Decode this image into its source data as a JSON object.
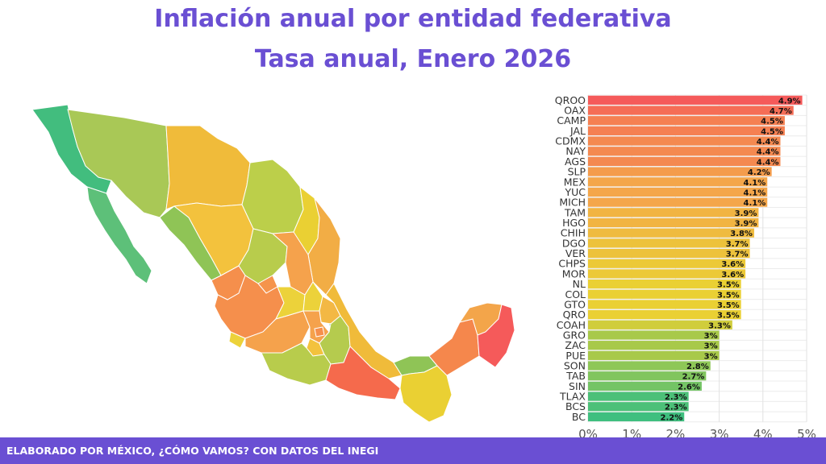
{
  "title": "Inflación anual por entidad federativa",
  "subtitle": "Tasa anual, Enero 2026",
  "footer": "ELABORADO POR MÉXICO, ¿CÓMO VAMOS? CON DATOS DEL INEGI",
  "colors": {
    "title": "#6a4fd3",
    "footer_bg": "#6a4fd3",
    "scale_low": "#3fbf7f",
    "scale_mid_low": "#a8c94a",
    "scale_mid": "#ead033",
    "scale_mid_high": "#f4a64a",
    "scale_high": "#f55a5a"
  },
  "map": {
    "type": "choropleth",
    "region": "Mexico states",
    "color_scale": "green-to-red"
  },
  "chart_data": {
    "type": "bar",
    "orientation": "horizontal",
    "categories": [
      "QROO",
      "OAX",
      "CAMP",
      "JAL",
      "CDMX",
      "NAY",
      "AGS",
      "SLP",
      "MEX",
      "YUC",
      "MICH",
      "TAM",
      "HGO",
      "CHIH",
      "DGO",
      "VER",
      "CHPS",
      "MOR",
      "NL",
      "COL",
      "GTO",
      "QRO",
      "COAH",
      "GRO",
      "ZAC",
      "PUE",
      "SON",
      "TAB",
      "SIN",
      "TLAX",
      "BCS",
      "BC"
    ],
    "values": [
      4.9,
      4.7,
      4.5,
      4.5,
      4.4,
      4.4,
      4.4,
      4.2,
      4.1,
      4.1,
      4.1,
      3.9,
      3.9,
      3.8,
      3.7,
      3.7,
      3.6,
      3.6,
      3.5,
      3.5,
      3.5,
      3.5,
      3.3,
      3,
      3,
      3,
      2.8,
      2.7,
      2.6,
      2.3,
      2.3,
      2.2
    ],
    "labels": [
      "4.9%",
      "4.7%",
      "4.5%",
      "4.5%",
      "4.4%",
      "4.4%",
      "4.4%",
      "4.2%",
      "4.1%",
      "4.1%",
      "4.1%",
      "3.9%",
      "3.9%",
      "3.8%",
      "3.7%",
      "3.7%",
      "3.6%",
      "3.6%",
      "3.5%",
      "3.5%",
      "3.5%",
      "3.5%",
      "3.3%",
      "3%",
      "3%",
      "3%",
      "2.8%",
      "2.7%",
      "2.6%",
      "2.3%",
      "2.3%",
      "2.2%"
    ],
    "xlim": [
      0,
      5
    ],
    "xticks": [
      "0%",
      "1%",
      "2%",
      "3%",
      "4%",
      "5%"
    ],
    "grid": true,
    "legend": "none"
  }
}
